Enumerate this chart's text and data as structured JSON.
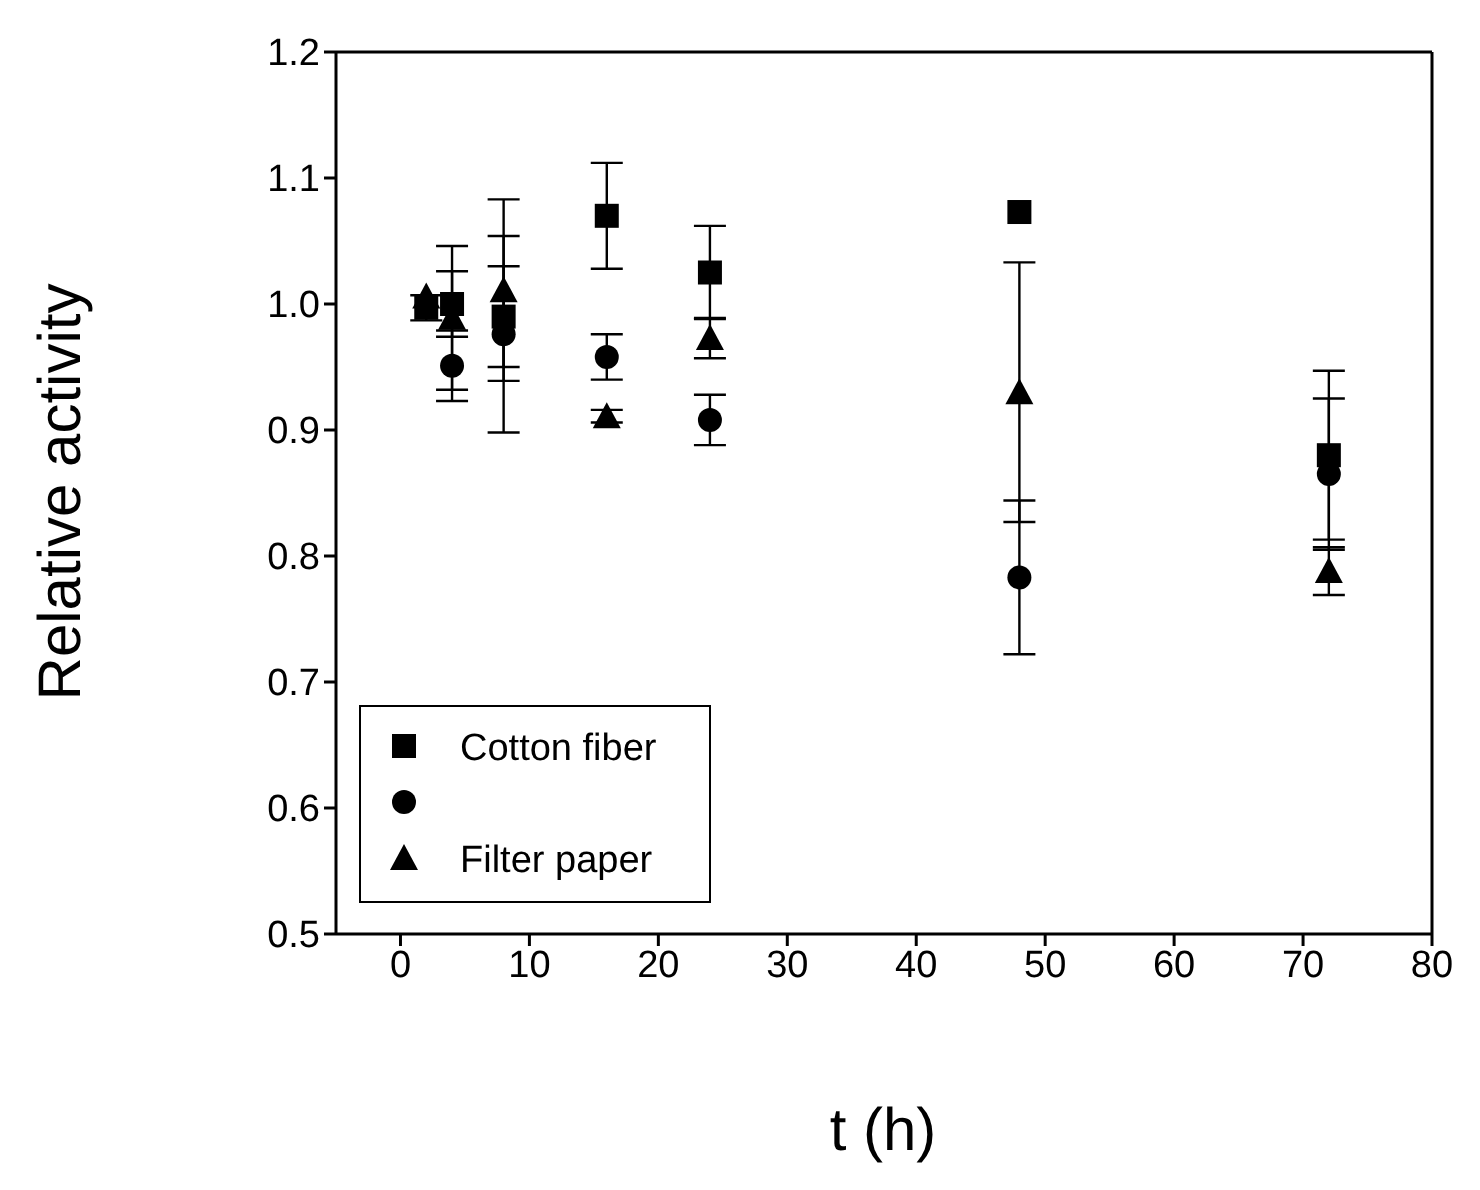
{
  "chart_data": {
    "type": "scatter",
    "xlabel": "t (h)",
    "ylabel": "Relative activity",
    "xlim": [
      -5,
      80
    ],
    "xticks": [
      0,
      10,
      20,
      30,
      40,
      50,
      60,
      70,
      80
    ],
    "ylim": [
      0.5,
      1.2
    ],
    "yticks": [
      {
        "value": 0.5,
        "label": "0.5"
      },
      {
        "value": 0.6,
        "label": "0.6"
      },
      {
        "value": 0.7,
        "label": "0.7"
      },
      {
        "value": 0.8,
        "label": "0.8"
      },
      {
        "value": 0.9,
        "label": "0.9"
      },
      {
        "value": 1.0,
        "label": "1.0"
      },
      {
        "value": 1.1,
        "label": "1.1"
      },
      {
        "value": 1.2,
        "label": "1.2"
      }
    ],
    "legend": "bottom left",
    "grid": false,
    "x": [
      2,
      4,
      8,
      16,
      24,
      48,
      72
    ],
    "series": [
      {
        "name": "Cotton fiber",
        "color": "#000000",
        "marker": "square",
        "values": [
          0.997,
          1.0,
          0.99,
          1.07,
          1.025,
          1.073,
          0.88
        ],
        "errors": [
          0.01,
          0.026,
          0.04,
          0.042,
          0.037,
          null,
          0.067
        ]
      },
      {
        "color": "#000000",
        "marker": "circle",
        "values": [
          null,
          0.951,
          0.976,
          0.958,
          0.908,
          0.783,
          0.865
        ],
        "errors": [
          null,
          0.028,
          0.078,
          0.018,
          0.02,
          0.061,
          0.06
        ]
      },
      {
        "name": "Filter paper",
        "color": "#000000",
        "marker": "triangle",
        "values": [
          1.006,
          0.989,
          1.011,
          0.911,
          0.973,
          0.93,
          0.788
        ],
        "errors": [
          null,
          0.057,
          0.072,
          0.005,
          0.016,
          0.103,
          0.019
        ]
      }
    ]
  }
}
